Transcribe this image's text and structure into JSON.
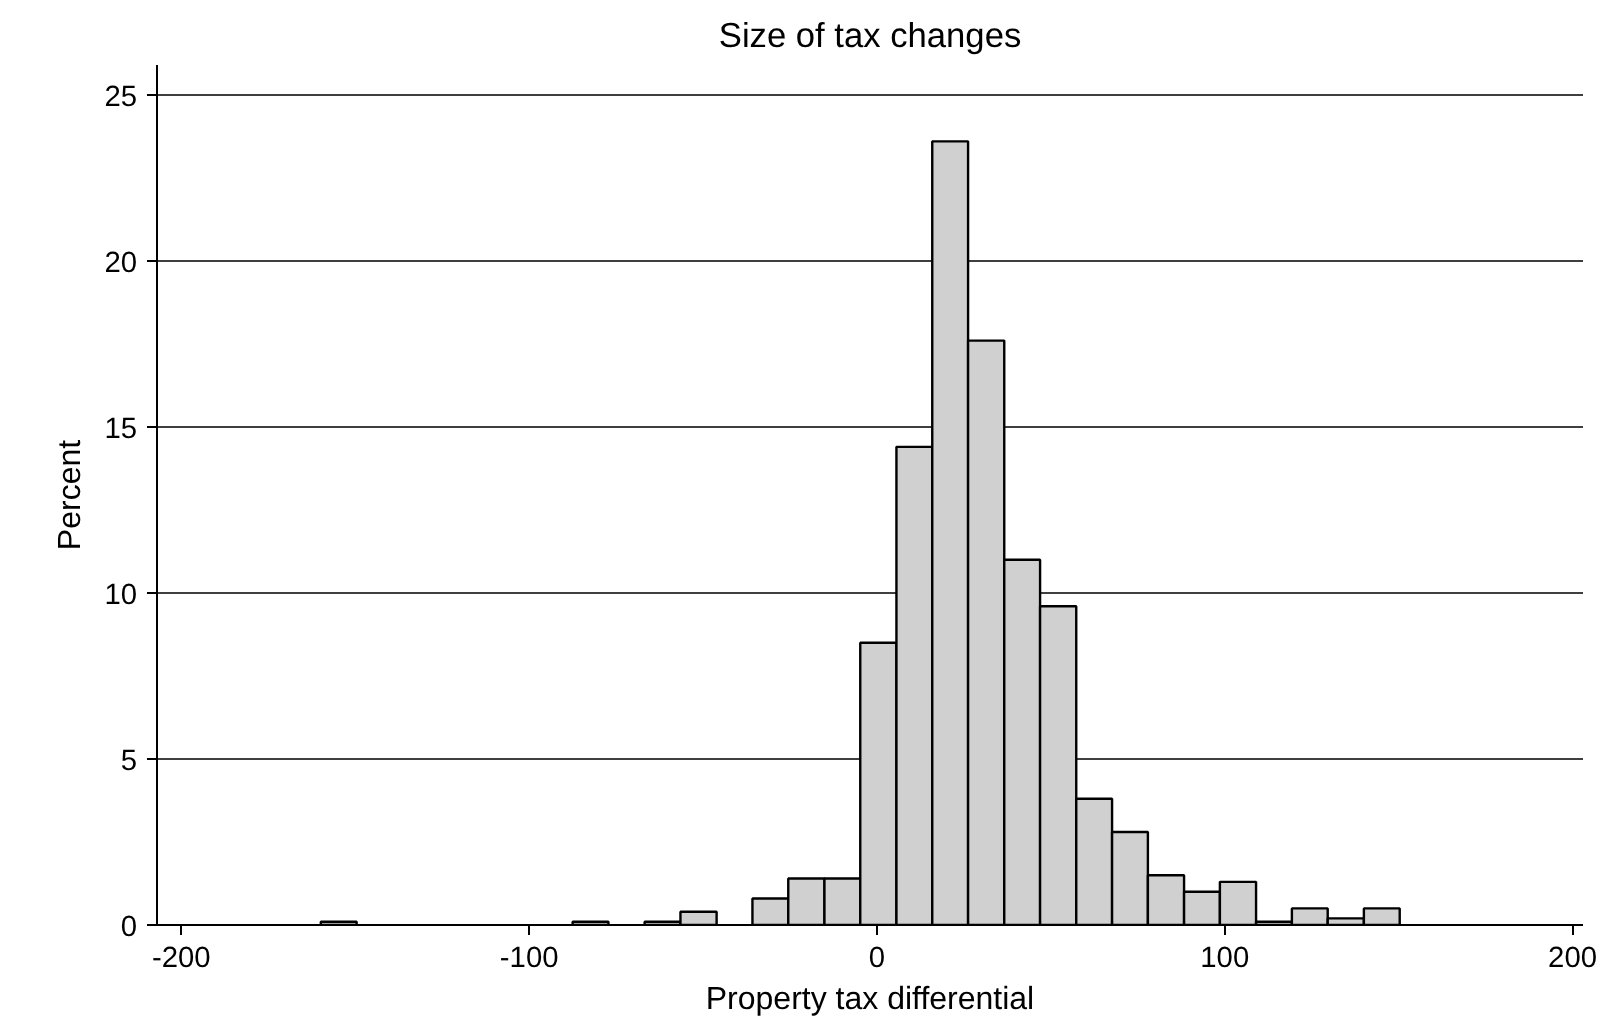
{
  "chart_data": {
    "type": "histogram",
    "title": "Size of tax changes",
    "xlabel": "Property tax differential",
    "ylabel": "Percent",
    "bins": [
      -159.9,
      -149.6,
      -139.2,
      -128.9,
      -118.5,
      -108.2,
      -97.9,
      -87.5,
      -77.2,
      -66.8,
      -56.5,
      -46.1,
      -35.8,
      -25.5,
      -15.1,
      -4.8,
      5.6,
      15.9,
      26.2,
      36.6,
      46.9,
      57.3,
      67.6,
      77.9,
      88.3,
      98.6,
      109.0,
      119.3,
      129.6,
      140.0,
      150.3
    ],
    "values": [
      0.1,
      0,
      0,
      0,
      0,
      0,
      0,
      0.1,
      0,
      0.1,
      0.4,
      0,
      0.8,
      1.4,
      1.4,
      8.5,
      14.4,
      23.6,
      17.6,
      11.0,
      9.6,
      3.8,
      2.8,
      1.5,
      1.0,
      1.3,
      0.1,
      0.5,
      0.2,
      0.5
    ],
    "color": "#d0d0d0",
    "xlim": [
      -207,
      203
    ],
    "ylim": [
      0,
      25.9
    ],
    "xticks": [
      -200,
      -100,
      0,
      100,
      200
    ],
    "yticks": [
      0,
      5,
      10,
      15,
      20,
      25
    ],
    "grid": "y"
  }
}
